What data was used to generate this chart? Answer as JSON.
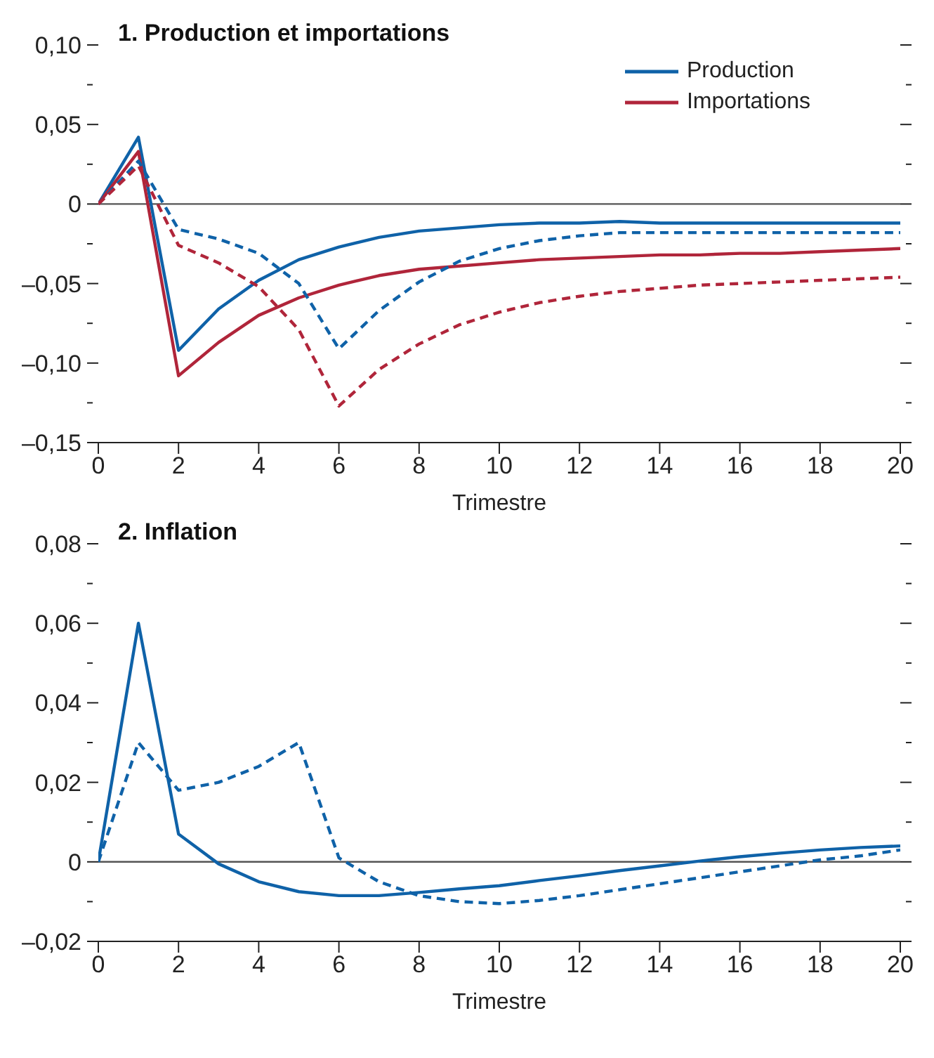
{
  "chart_data": [
    {
      "type": "line",
      "title": "1. Production et importations",
      "xlabel": "Trimestre",
      "x": [
        0,
        1,
        2,
        3,
        4,
        5,
        6,
        7,
        8,
        9,
        10,
        11,
        12,
        13,
        14,
        15,
        16,
        17,
        18,
        19,
        20
      ],
      "series": [
        {
          "name": "Production",
          "color": "#0f62a8",
          "line_style": "solid",
          "values": [
            0,
            0.042,
            -0.092,
            -0.066,
            -0.048,
            -0.035,
            -0.027,
            -0.021,
            -0.017,
            -0.015,
            -0.013,
            -0.012,
            -0.012,
            -0.011,
            -0.012,
            -0.012,
            -0.012,
            -0.012,
            -0.012,
            -0.012,
            -0.012
          ]
        },
        {
          "name": "Importations",
          "color": "#b0253a",
          "line_style": "solid",
          "values": [
            0,
            0.033,
            -0.108,
            -0.087,
            -0.07,
            -0.059,
            -0.051,
            -0.045,
            -0.041,
            -0.039,
            -0.037,
            -0.035,
            -0.034,
            -0.033,
            -0.032,
            -0.032,
            -0.031,
            -0.031,
            -0.03,
            -0.029,
            -0.028
          ]
        },
        {
          "color": "#0f62a8",
          "line_style": "dashed",
          "values": [
            0,
            0.027,
            -0.016,
            -0.022,
            -0.031,
            -0.05,
            -0.091,
            -0.067,
            -0.049,
            -0.036,
            -0.028,
            -0.023,
            -0.02,
            -0.018,
            -0.018,
            -0.018,
            -0.018,
            -0.018,
            -0.018,
            -0.018,
            -0.018
          ]
        },
        {
          "color": "#b0253a",
          "line_style": "dashed",
          "values": [
            0,
            0.024,
            -0.026,
            -0.037,
            -0.052,
            -0.079,
            -0.127,
            -0.104,
            -0.088,
            -0.076,
            -0.068,
            -0.062,
            -0.058,
            -0.055,
            -0.053,
            -0.051,
            -0.05,
            -0.049,
            -0.048,
            -0.047,
            -0.046
          ]
        }
      ],
      "xlim": [
        0,
        20
      ],
      "xticks": [
        0,
        2,
        4,
        6,
        8,
        10,
        12,
        14,
        16,
        18,
        20
      ],
      "ylim": [
        -0.15,
        0.1
      ],
      "yticks": [
        {
          "value": -0.15,
          "label": "–0,15"
        },
        {
          "value": -0.125,
          "label": null
        },
        {
          "value": -0.1,
          "label": "–0,10"
        },
        {
          "value": -0.075,
          "label": null
        },
        {
          "value": -0.05,
          "label": "–0,05"
        },
        {
          "value": -0.025,
          "label": null
        },
        {
          "value": 0,
          "label": "0"
        },
        {
          "value": 0.025,
          "label": null
        },
        {
          "value": 0.05,
          "label": "0,05"
        },
        {
          "value": 0.075,
          "label": null
        },
        {
          "value": 0.1,
          "label": "0,10"
        }
      ],
      "ref_lines": [
        {
          "axis": "y",
          "value": 0,
          "color": "#555555"
        }
      ],
      "grid": false,
      "legend": "top right",
      "marker": "none"
    },
    {
      "type": "line",
      "title": "2. Inflation",
      "xlabel": "Trimestre",
      "x": [
        0,
        1,
        2,
        3,
        4,
        5,
        6,
        7,
        8,
        9,
        10,
        11,
        12,
        13,
        14,
        15,
        16,
        17,
        18,
        19,
        20
      ],
      "series": [
        {
          "color": "#0f62a8",
          "line_style": "solid",
          "values": [
            0,
            0.06,
            0.007,
            -0.0005,
            -0.005,
            -0.0075,
            -0.0085,
            -0.0085,
            -0.0077,
            -0.0068,
            -0.006,
            -0.0047,
            -0.0035,
            -0.0022,
            -0.001,
            0.0002,
            0.0013,
            0.0022,
            0.003,
            0.0036,
            0.004
          ]
        },
        {
          "color": "#0f62a8",
          "line_style": "dashed",
          "values": [
            0,
            0.03,
            0.018,
            0.02,
            0.024,
            0.03,
            0.001,
            -0.005,
            -0.0085,
            -0.01,
            -0.0105,
            -0.0097,
            -0.0085,
            -0.007,
            -0.0055,
            -0.004,
            -0.0025,
            -0.001,
            0.0005,
            0.0015,
            0.003
          ]
        }
      ],
      "xlim": [
        0,
        20
      ],
      "xticks": [
        0,
        2,
        4,
        6,
        8,
        10,
        12,
        14,
        16,
        18,
        20
      ],
      "ylim": [
        -0.02,
        0.08
      ],
      "yticks": [
        {
          "value": -0.02,
          "label": "–0,02"
        },
        {
          "value": -0.01,
          "label": null
        },
        {
          "value": 0,
          "label": "0"
        },
        {
          "value": 0.01,
          "label": null
        },
        {
          "value": 0.02,
          "label": "0,02"
        },
        {
          "value": 0.03,
          "label": null
        },
        {
          "value": 0.04,
          "label": "0,04"
        },
        {
          "value": 0.05,
          "label": null
        },
        {
          "value": 0.06,
          "label": "0,06"
        },
        {
          "value": 0.07,
          "label": null
        },
        {
          "value": 0.08,
          "label": "0,08"
        }
      ],
      "ref_lines": [
        {
          "axis": "y",
          "value": 0,
          "color": "#555555"
        }
      ],
      "grid": false,
      "legend": false,
      "marker": "none"
    }
  ]
}
